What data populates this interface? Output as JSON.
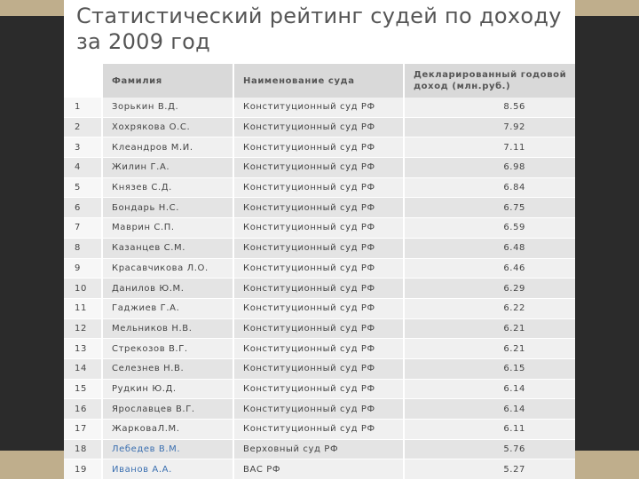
{
  "title": "Статистический рейтинг судей по доходу за 2009 год",
  "headers": {
    "num": "",
    "surname": "Фамилия",
    "court": "Наименование суда",
    "income": "Декларированный годовой доход (млн.руб.)"
  },
  "rows": [
    {
      "n": "1",
      "name": "Зорькин В.Д.",
      "court": "Конституционный суд РФ",
      "income": "8.56",
      "link": false
    },
    {
      "n": "2",
      "name": "Хохрякова О.С.",
      "court": "Конституционный суд РФ",
      "income": "7.92",
      "link": false
    },
    {
      "n": "3",
      "name": "Клеандров М.И.",
      "court": "Конституционный суд РФ",
      "income": "7.11",
      "link": false
    },
    {
      "n": "4",
      "name": "Жилин Г.А.",
      "court": "Конституционный суд РФ",
      "income": "6.98",
      "link": false
    },
    {
      "n": "5",
      "name": "Князев С.Д.",
      "court": "Конституционный суд РФ",
      "income": "6.84",
      "link": false
    },
    {
      "n": "6",
      "name": "Бондарь Н.С.",
      "court": "Конституционный суд РФ",
      "income": "6.75",
      "link": false
    },
    {
      "n": "7",
      "name": "Маврин С.П.",
      "court": "Конституционный суд РФ",
      "income": "6.59",
      "link": false
    },
    {
      "n": "8",
      "name": "Казанцев С.М.",
      "court": "Конституционный суд РФ",
      "income": "6.48",
      "link": false
    },
    {
      "n": "9",
      "name": "Красавчикова Л.О.",
      "court": "Конституционный суд РФ",
      "income": "6.46",
      "link": false
    },
    {
      "n": "10",
      "name": "Данилов Ю.М.",
      "court": "Конституционный суд РФ",
      "income": "6.29",
      "link": false
    },
    {
      "n": "11",
      "name": "Гаджиев Г.А.",
      "court": "Конституционный суд РФ",
      "income": "6.22",
      "link": false
    },
    {
      "n": "12",
      "name": "Мельников Н.В.",
      "court": "Конституционный суд РФ",
      "income": "6.21",
      "link": false
    },
    {
      "n": "13",
      "name": "Стрекозов В.Г.",
      "court": "Конституционный суд РФ",
      "income": "6.21",
      "link": false
    },
    {
      "n": "14",
      "name": "Селезнев Н.В.",
      "court": "Конституционный суд РФ",
      "income": "6.15",
      "link": false
    },
    {
      "n": "15",
      "name": "Рудкин Ю.Д.",
      "court": "Конституционный суд РФ",
      "income": "6.14",
      "link": false
    },
    {
      "n": "16",
      "name": "Ярославцев В.Г.",
      "court": "Конституционный суд РФ",
      "income": "6.14",
      "link": false
    },
    {
      "n": "17",
      "name": "ЖарковаЛ.М.",
      "court": "Конституционный суд РФ",
      "income": "6.11",
      "link": false
    },
    {
      "n": "18",
      "name": "Лебедев В.М.",
      "court": "Верховный суд РФ",
      "income": "5.76",
      "link": true
    },
    {
      "n": "19",
      "name": "Иванов А.А.",
      "court": "ВАС РФ",
      "income": "5.27",
      "link": true
    }
  ],
  "colors": {
    "link": "#3a6fb0",
    "frame": "#bfae8c",
    "background": "#2b2b2b"
  }
}
